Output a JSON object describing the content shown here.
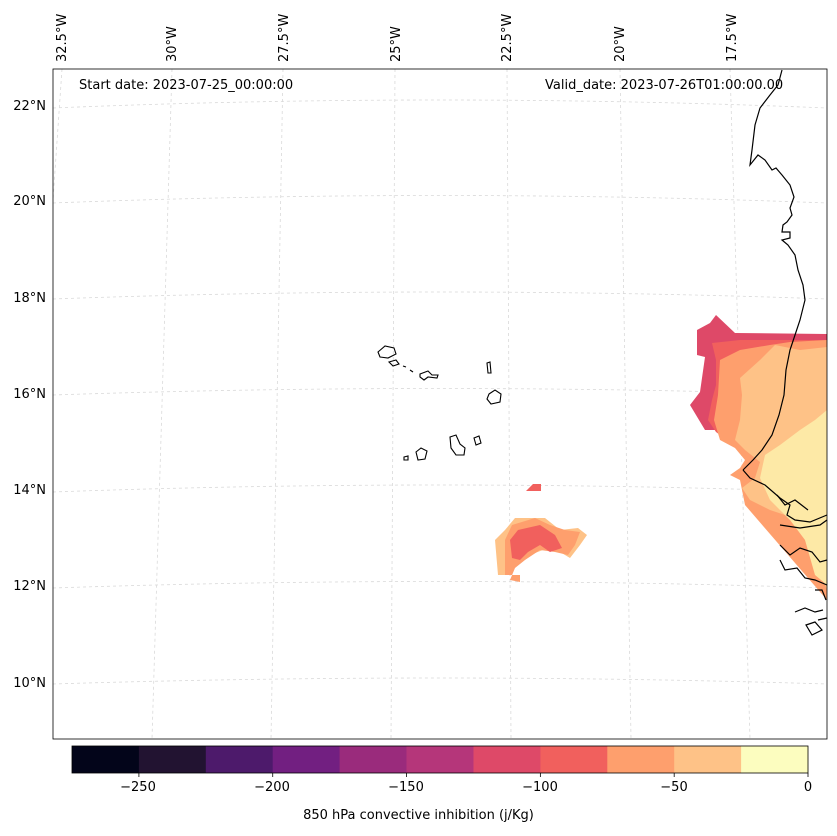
{
  "map": {
    "start_label": "Start date: 2023-07-25_00:00:00",
    "valid_label": "Valid_date: 2023-07-26T01:00:00.00",
    "lat_labels": [
      "22°N",
      "20°N",
      "18°N",
      "16°N",
      "14°N",
      "12°N",
      "10°N"
    ],
    "lon_labels": [
      "32.5°W",
      "30°W",
      "27.5°W",
      "25°W",
      "22.5°W",
      "20°W",
      "17.5°W"
    ]
  },
  "colorbar": {
    "title": "850 hPa convective inhibition (j/Kg)",
    "ticks": [
      "−250",
      "−200",
      "−150",
      "−100",
      "−50",
      "0"
    ],
    "levels": [
      -275,
      -250,
      -225,
      -200,
      -175,
      -150,
      -125,
      -100,
      -75,
      -50,
      -25,
      0
    ],
    "colors": [
      "#03051a",
      "#221331",
      "#4d1a6b",
      "#721f81",
      "#9a2b7c",
      "#b5367a",
      "#de4968",
      "#f1605d",
      "#fe9f6d",
      "#fec287",
      "#fcfdbf",
      "#fde9a6"
    ]
  },
  "colors": {
    "band_-125": "#de4968",
    "band_-100": "#f1605d",
    "band_-75": "#fe9f6d",
    "band_-50": "#fec287",
    "band_-25": "#fde9a6",
    "grid": "#d9d9d9",
    "coast": "#000000"
  }
}
